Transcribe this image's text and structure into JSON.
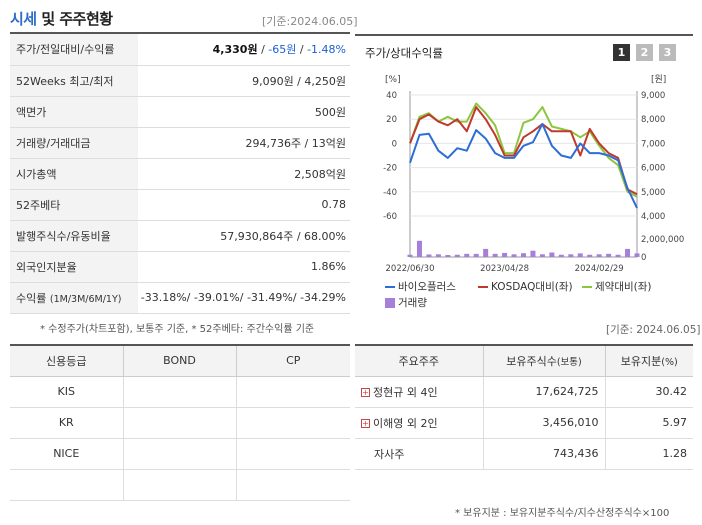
{
  "header": {
    "title_part1": "시세",
    "title_part2": " 및 주주현황",
    "as_of": "[기준:2024.06.05]"
  },
  "info_rows": {
    "r0": {
      "label": "주가/전일대비/수익률",
      "price": "4,330원",
      "sep1": " / ",
      "change": "-65원",
      "sep2": " / ",
      "rate": "-1.48%"
    },
    "r1": {
      "label": "52Weeks 최고/최저",
      "value": "9,090원 / 4,250원"
    },
    "r2": {
      "label": "액면가",
      "value": "500원"
    },
    "r3": {
      "label": "거래량/거래대금",
      "value": "294,736주 / 13억원"
    },
    "r4": {
      "label": "시가총액",
      "value": "2,508억원"
    },
    "r5": {
      "label": "52주베타",
      "value": "0.78"
    },
    "r6": {
      "label": "발행주식수/유동비율",
      "value": "57,930,864주 / 68.00%"
    },
    "r7": {
      "label": "외국인지분율",
      "value": "1.86%"
    },
    "r8": {
      "label": "수익률",
      "label_sub": "(1M/3M/6M/1Y)",
      "value": "-33.18%/ -39.01%/ -31.49%/ -34.29%"
    }
  },
  "note1": "* 수정주가(차트포함), 보통주 기준, * 52주베타: 주간수익률 기준",
  "chart_panel": {
    "title": "주가/상대수익률",
    "pages": [
      "1",
      "2",
      "3"
    ],
    "left_unit": "[%]",
    "right_unit": "[원]",
    "legend": {
      "s1": "바이오플러스",
      "s2": "KOSDAQ대비(좌)",
      "s3": "제약대비(좌)",
      "s4": "거래량"
    }
  },
  "chart_data": {
    "type": "line",
    "x": [
      "2022/06/30",
      "2022/07",
      "2022/08",
      "2022/09",
      "2022/10",
      "2022/11",
      "2022/12",
      "2023/01",
      "2023/02",
      "2023/03",
      "2023/04",
      "2023/05",
      "2023/06",
      "2023/07",
      "2023/08",
      "2023/09",
      "2023/10",
      "2023/11",
      "2023/12",
      "2024/01",
      "2024/02",
      "2024/03",
      "2024/04",
      "2024/05",
      "2024/06"
    ],
    "x_tick_labels": [
      "2022/06/30",
      "2023/04/28",
      "2024/02/29"
    ],
    "y_left": {
      "ticks": [
        "40",
        "20",
        "0",
        "-20",
        "-40",
        "-60"
      ],
      "ylim": [
        -60,
        40
      ]
    },
    "y_right": {
      "ticks": [
        "9,000",
        "8,000",
        "7,000",
        "6,000",
        "5,000",
        "4,000"
      ],
      "ylim": [
        4000,
        9000
      ]
    },
    "volume_axis": {
      "ticks": [
        "2,000,000",
        "0"
      ],
      "ylim": [
        0,
        2000000
      ]
    },
    "series": [
      {
        "name": "바이오플러스",
        "axis": "right",
        "color": "#2d6ed6",
        "values": [
          6200,
          7350,
          7400,
          6700,
          6400,
          6800,
          6700,
          7550,
          7200,
          6600,
          6400,
          6400,
          6900,
          7050,
          7800,
          6900,
          6500,
          6400,
          7000,
          6600,
          6600,
          6500,
          6300,
          5150,
          4330
        ]
      },
      {
        "name": "KOSDAQ대비(좌)",
        "axis": "left",
        "color": "#c0392b",
        "values": [
          0,
          20,
          24,
          18,
          15,
          20,
          10,
          30,
          20,
          7,
          -10,
          -10,
          5,
          10,
          16,
          10,
          10,
          10,
          -10,
          12,
          0,
          -8,
          -12,
          -38,
          -42
        ]
      },
      {
        "name": "제약대비(좌)",
        "axis": "left",
        "color": "#8cc63f",
        "values": [
          0,
          22,
          25,
          18,
          22,
          18,
          18,
          33,
          25,
          15,
          -8,
          -8,
          17,
          20,
          30,
          14,
          12,
          10,
          5,
          10,
          -2,
          -12,
          -18,
          -40,
          -44
        ]
      }
    ],
    "volume": {
      "name": "거래량",
      "color": "#a57fd8",
      "values": [
        250000,
        1800000,
        280000,
        300000,
        220000,
        250000,
        350000,
        350000,
        900000,
        350000,
        450000,
        300000,
        420000,
        700000,
        300000,
        500000,
        250000,
        300000,
        400000,
        250000,
        300000,
        350000,
        250000,
        900000,
        400000
      ]
    }
  },
  "as_of2": "[기준: 2024.06.05]",
  "credit": {
    "headers": [
      "신용등급",
      "BOND",
      "CP"
    ],
    "rows": [
      [
        "KIS",
        "",
        ""
      ],
      [
        "KR",
        "",
        ""
      ],
      [
        "NICE",
        "",
        ""
      ],
      [
        "",
        "",
        ""
      ]
    ]
  },
  "holders": {
    "headers": {
      "h0": "주요주주",
      "h1": "보유주식수",
      "h1_sub": "(보통)",
      "h2": "보유지분",
      "h2_sub": "(%)"
    },
    "rows": [
      {
        "name": "정현규 외 4인",
        "shares": "17,624,725",
        "pct": "30.42"
      },
      {
        "name": "이해영 외 2인",
        "shares": "3,456,010",
        "pct": "5.97"
      },
      {
        "name": "자사주",
        "shares": "743,436",
        "pct": "1.28"
      }
    ]
  },
  "note2": "* 보유지분 : 보유지분주식수/지수산정주식수×100"
}
